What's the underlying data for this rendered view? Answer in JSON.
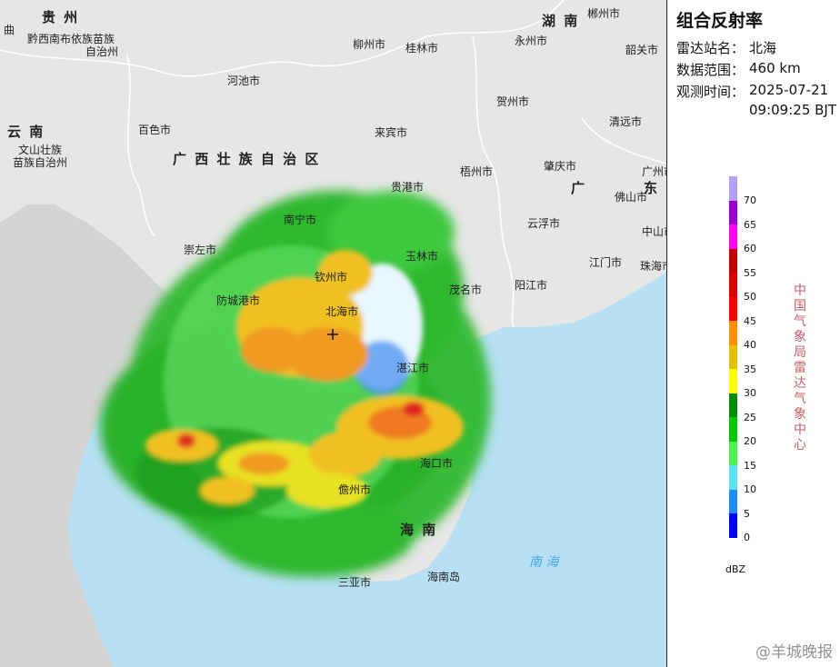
{
  "panel": {
    "title": "组合反射率",
    "station_label": "雷达站名：",
    "station_value": "北海",
    "range_label": "数据范围：",
    "range_value": "460 km",
    "time_label": "观测时间：",
    "time_date": "2025-07-21",
    "time_clock": "09:09:25 BJT",
    "unit": "dBZ",
    "agency": "中国气象局雷达气象中心"
  },
  "legend": {
    "ticks": [
      "70",
      "65",
      "60",
      "55",
      "50",
      "45",
      "40",
      "35",
      "30",
      "25",
      "20",
      "15",
      "10",
      "5",
      "0"
    ],
    "colors": [
      "#b4a0f0",
      "#9a00d0",
      "#ff00f0",
      "#c00000",
      "#d80000",
      "#ff0000",
      "#ff9000",
      "#e7c000",
      "#ffff00",
      "#008c00",
      "#00c800",
      "#50f050",
      "#60e0f0",
      "#1e8cf0",
      "#0000f6"
    ]
  },
  "watermark": "@羊城晚报",
  "labels": {
    "guizhou": "贵 州",
    "hunan": "湖 南",
    "yunnan": "云 南",
    "guangxi": "广 西 壮 族 自 治 区",
    "guangdong_a": "广",
    "guangdong_b": "东",
    "hainan": "海 南",
    "nanhai": "南 海",
    "qiannan": "黔西南布依族苗族",
    "qiannan2": "自治州",
    "wenshan": "文山壮族",
    "wenshan2": "苗族自治州",
    "qujing": "曲",
    "liuzhou": "柳州市",
    "guilin": "桂林市",
    "yongzhou": "永州市",
    "chenzhou": "郴州市",
    "shaoguan": "韶关市",
    "hechi": "河池市",
    "baise": "百色市",
    "laibin": "来宾市",
    "hezhou": "贺州市",
    "qingyuan": "清远市",
    "wuzhou": "梧州市",
    "zhaoqing": "肇庆市",
    "guangzhou": "广州市",
    "guigang": "贵港市",
    "yunfu": "云浮市",
    "foshan": "佛山市",
    "nanning": "南宁市",
    "chongzuo": "崇左市",
    "yulin": "玉林市",
    "jiangmen": "江门市",
    "zhongshan": "中山市",
    "zhuhai": "珠海市",
    "qinzhou": "钦州市",
    "fangchenggang": "防城港市",
    "beihai": "北海市",
    "maoming": "茂名市",
    "yangjiang": "阳江市",
    "zhanjiang": "湛江市",
    "haikou": "海口市",
    "danzhou": "儋州市",
    "sanya": "三亚市",
    "hainandao": "海南岛"
  }
}
